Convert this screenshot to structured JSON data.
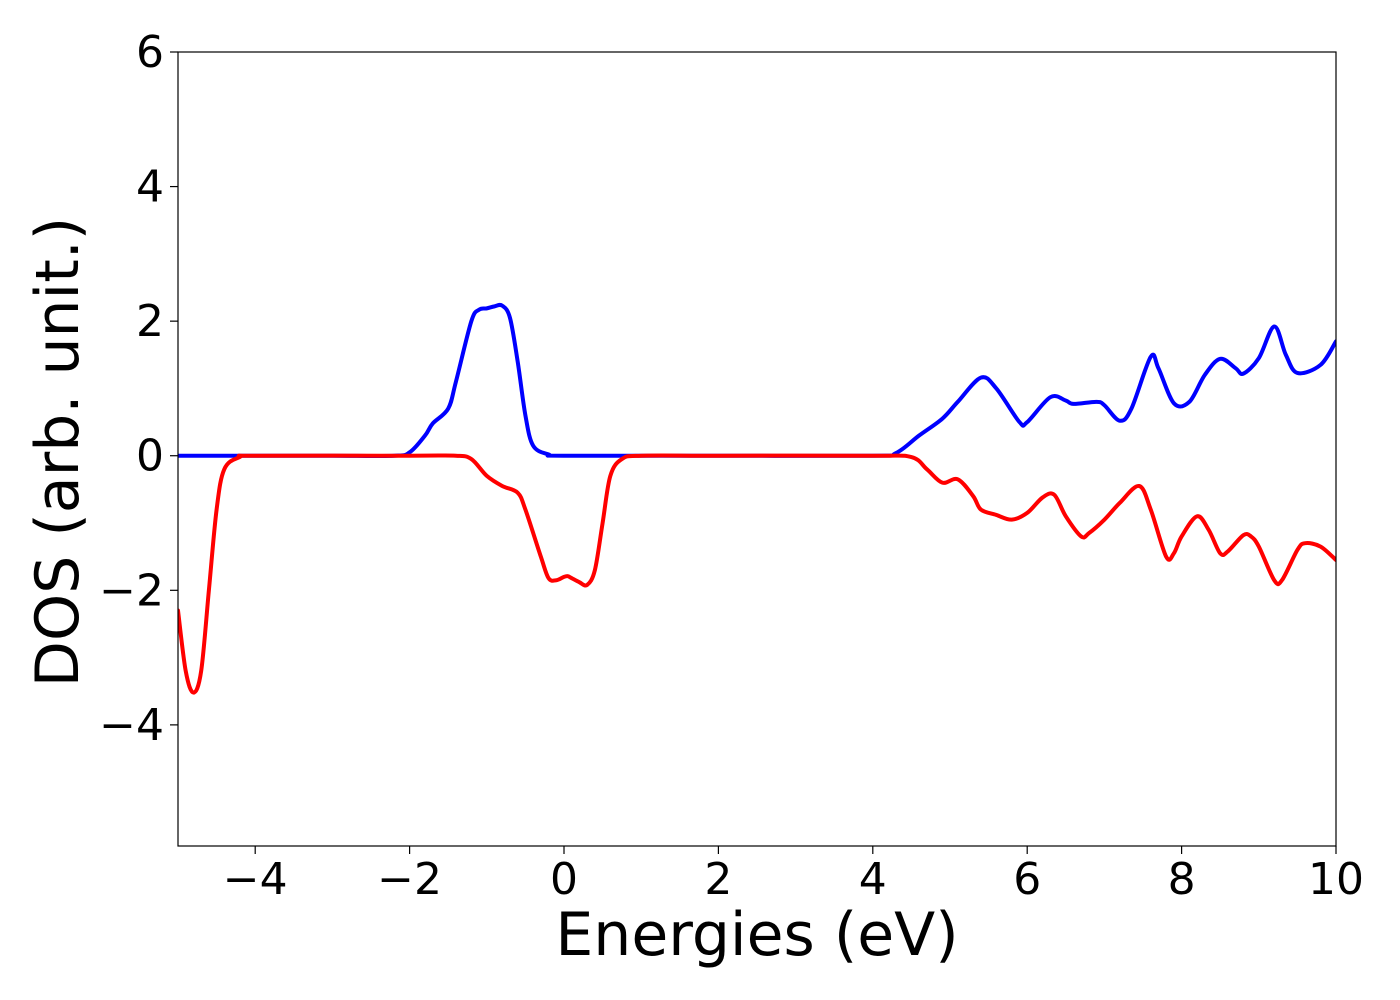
{
  "chart_data": {
    "type": "line",
    "title": "",
    "xlabel": "Energies (eV)",
    "ylabel": "DOS (arb. unit.)",
    "xlim": [
      -5,
      10
    ],
    "ylim": [
      -5.8,
      6
    ],
    "grid": false,
    "x_ticks": [
      -4,
      -2,
      0,
      2,
      4,
      6,
      8,
      10
    ],
    "x_tick_labels": [
      "−4",
      "−2",
      "0",
      "2",
      "4",
      "6",
      "8",
      "10"
    ],
    "y_ticks": [
      -4,
      -2,
      0,
      2,
      4,
      6
    ],
    "y_tick_labels": [
      "−4",
      "−2",
      "0",
      "2",
      "4",
      "6"
    ],
    "series": [
      {
        "color": "#0000ff",
        "points": [
          [
            -5.0,
            0.0
          ],
          [
            -4.0,
            0.0
          ],
          [
            -3.0,
            0.0
          ],
          [
            -2.2,
            0.0
          ],
          [
            -2.0,
            0.05
          ],
          [
            -1.8,
            0.3
          ],
          [
            -1.7,
            0.48
          ],
          [
            -1.5,
            0.7
          ],
          [
            -1.4,
            1.1
          ],
          [
            -1.2,
            2.0
          ],
          [
            -1.1,
            2.17
          ],
          [
            -1.0,
            2.19
          ],
          [
            -0.9,
            2.22
          ],
          [
            -0.8,
            2.23
          ],
          [
            -0.7,
            2.05
          ],
          [
            -0.6,
            1.4
          ],
          [
            -0.5,
            0.6
          ],
          [
            -0.4,
            0.15
          ],
          [
            -0.2,
            0.02
          ],
          [
            0.0,
            0.0
          ],
          [
            2.0,
            0.0
          ],
          [
            4.0,
            0.0
          ],
          [
            4.3,
            0.04
          ],
          [
            4.6,
            0.3
          ],
          [
            4.9,
            0.55
          ],
          [
            5.1,
            0.8
          ],
          [
            5.4,
            1.16
          ],
          [
            5.6,
            1.0
          ],
          [
            5.9,
            0.5
          ],
          [
            6.0,
            0.5
          ],
          [
            6.3,
            0.87
          ],
          [
            6.5,
            0.82
          ],
          [
            6.6,
            0.77
          ],
          [
            6.9,
            0.8
          ],
          [
            7.0,
            0.75
          ],
          [
            7.2,
            0.52
          ],
          [
            7.35,
            0.7
          ],
          [
            7.6,
            1.47
          ],
          [
            7.7,
            1.3
          ],
          [
            7.9,
            0.78
          ],
          [
            8.1,
            0.8
          ],
          [
            8.3,
            1.2
          ],
          [
            8.5,
            1.44
          ],
          [
            8.7,
            1.3
          ],
          [
            8.8,
            1.22
          ],
          [
            9.0,
            1.45
          ],
          [
            9.2,
            1.92
          ],
          [
            9.35,
            1.5
          ],
          [
            9.5,
            1.23
          ],
          [
            9.8,
            1.35
          ],
          [
            10.0,
            1.7
          ]
        ]
      },
      {
        "color": "#ff0000",
        "points": [
          [
            -5.0,
            -2.3
          ],
          [
            -4.9,
            -3.2
          ],
          [
            -4.8,
            -3.52
          ],
          [
            -4.7,
            -3.2
          ],
          [
            -4.6,
            -2.0
          ],
          [
            -4.5,
            -0.8
          ],
          [
            -4.4,
            -0.2
          ],
          [
            -4.2,
            -0.02
          ],
          [
            -4.0,
            0.0
          ],
          [
            -2.0,
            0.0
          ],
          [
            -1.4,
            0.0
          ],
          [
            -1.2,
            -0.05
          ],
          [
            -1.0,
            -0.3
          ],
          [
            -0.8,
            -0.45
          ],
          [
            -0.6,
            -0.55
          ],
          [
            -0.5,
            -0.8
          ],
          [
            -0.3,
            -1.5
          ],
          [
            -0.2,
            -1.82
          ],
          [
            -0.1,
            -1.85
          ],
          [
            0.0,
            -1.8
          ],
          [
            0.05,
            -1.79
          ],
          [
            0.1,
            -1.82
          ],
          [
            0.2,
            -1.88
          ],
          [
            0.3,
            -1.92
          ],
          [
            0.4,
            -1.7
          ],
          [
            0.5,
            -1.0
          ],
          [
            0.6,
            -0.3
          ],
          [
            0.75,
            -0.05
          ],
          [
            1.0,
            0.0
          ],
          [
            2.0,
            0.0
          ],
          [
            4.0,
            0.0
          ],
          [
            4.5,
            -0.02
          ],
          [
            4.7,
            -0.2
          ],
          [
            4.9,
            -0.4
          ],
          [
            5.1,
            -0.35
          ],
          [
            5.3,
            -0.6
          ],
          [
            5.4,
            -0.8
          ],
          [
            5.6,
            -0.88
          ],
          [
            5.8,
            -0.95
          ],
          [
            6.0,
            -0.85
          ],
          [
            6.2,
            -0.62
          ],
          [
            6.35,
            -0.58
          ],
          [
            6.5,
            -0.9
          ],
          [
            6.7,
            -1.2
          ],
          [
            6.8,
            -1.15
          ],
          [
            7.0,
            -0.95
          ],
          [
            7.2,
            -0.7
          ],
          [
            7.45,
            -0.45
          ],
          [
            7.6,
            -0.8
          ],
          [
            7.8,
            -1.5
          ],
          [
            7.9,
            -1.45
          ],
          [
            8.0,
            -1.2
          ],
          [
            8.2,
            -0.9
          ],
          [
            8.35,
            -1.1
          ],
          [
            8.5,
            -1.45
          ],
          [
            8.6,
            -1.42
          ],
          [
            8.8,
            -1.18
          ],
          [
            8.9,
            -1.2
          ],
          [
            9.0,
            -1.35
          ],
          [
            9.2,
            -1.85
          ],
          [
            9.3,
            -1.85
          ],
          [
            9.5,
            -1.4
          ],
          [
            9.6,
            -1.3
          ],
          [
            9.8,
            -1.35
          ],
          [
            10.0,
            -1.55
          ]
        ]
      }
    ]
  }
}
